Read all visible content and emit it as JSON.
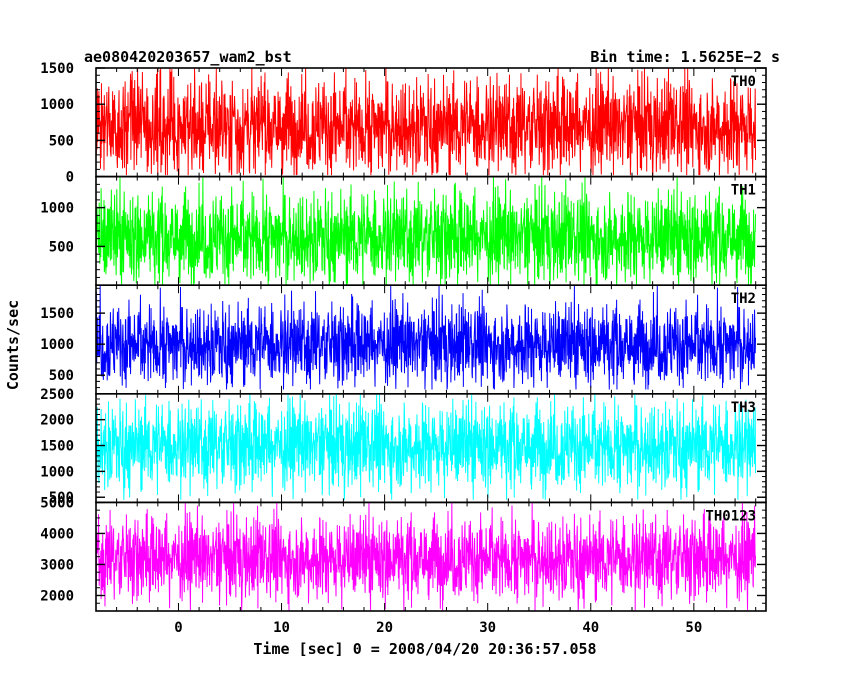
{
  "chart_data": {
    "type": "line",
    "title": "ae080420203657_wam2_bst",
    "subtitle": "Bin time: 1.5625E−2 s",
    "xlabel": "Time [sec] 0 = 2008/04/20 20:36:57.058",
    "ylabel": "Counts/sec",
    "xlim": [
      -8.0,
      57.0
    ],
    "x_data_range": [
      -8.0,
      56.0
    ],
    "x_ticks": [
      0,
      10,
      20,
      30,
      40,
      50
    ],
    "x_tick_labels": [
      "0",
      "10",
      "20",
      "30",
      "40",
      "50"
    ],
    "grid": false,
    "panels": [
      {
        "name": "TH0",
        "color": "#ff0000",
        "ylim": [
          0,
          1500
        ],
        "y_ticks": [
          0,
          500,
          1000,
          1500
        ],
        "y_tick_labels": [
          "0",
          "500",
          "1000",
          "1500"
        ],
        "mean": 700,
        "min": 20,
        "max": 1500,
        "spread": 340
      },
      {
        "name": "TH1",
        "color": "#00ff00",
        "ylim": [
          0,
          1400
        ],
        "y_ticks": [
          500,
          1000
        ],
        "y_tick_labels": [
          "500",
          "1000"
        ],
        "mean": 620,
        "min": 0,
        "max": 1400,
        "spread": 300
      },
      {
        "name": "TH2",
        "color": "#0000ff",
        "ylim": [
          200,
          1950
        ],
        "y_ticks": [
          500,
          1000,
          1500
        ],
        "y_tick_labels": [
          "500",
          "1000",
          "1500"
        ],
        "mean": 1000,
        "min": 270,
        "max": 1950,
        "spread": 330
      },
      {
        "name": "TH3",
        "color": "#00ffff",
        "ylim": [
          400,
          2500
        ],
        "y_ticks": [
          500,
          1000,
          1500,
          2000,
          2500
        ],
        "y_tick_labels": [
          "500",
          "1000",
          "1500",
          "2000",
          "2500"
        ],
        "mean": 1500,
        "min": 450,
        "max": 2500,
        "spread": 430
      },
      {
        "name": "TH0123",
        "color": "#ff00ff",
        "ylim": [
          1500,
          5000
        ],
        "y_ticks": [
          2000,
          3000,
          4000,
          5000
        ],
        "y_tick_labels": [
          "2000",
          "3000",
          "4000",
          "5000"
        ],
        "mean": 3200,
        "min": 1500,
        "max": 5000,
        "spread": 680
      }
    ]
  }
}
